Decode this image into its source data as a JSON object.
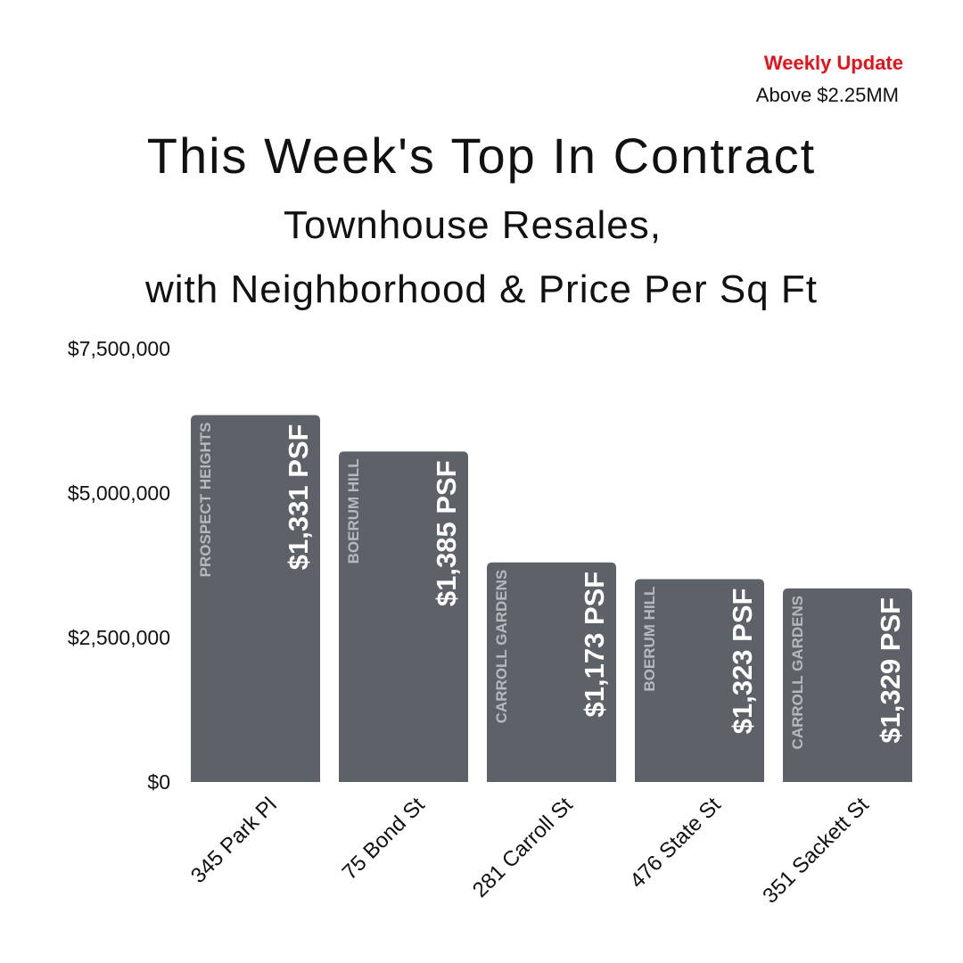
{
  "header": {
    "badge": "Weekly Update",
    "threshold": "Above $2.25MM",
    "title": "This Week's Top In Contract",
    "subtitle_line1": "Townhouse Resales,",
    "subtitle_line2": "with Neighborhood & Price Per Sq Ft"
  },
  "colors": {
    "bar": "#5d6268",
    "badge": "#e3121b",
    "psf_text": "#ffffff",
    "neighborhood_text": "#b6b9bc"
  },
  "chart_data": {
    "type": "bar",
    "categories": [
      "345 Park Pl",
      "75 Bond St",
      "281 Carroll St",
      "476 State St",
      "351 Sackett St"
    ],
    "values": [
      6350000,
      5720000,
      3800000,
      3510000,
      3350000
    ],
    "psf_labels": [
      "$1,331 PSF",
      "$1,385 PSF",
      "$1,173 PSF",
      "$1,323 PSF",
      "$1,329 PSF"
    ],
    "neighborhoods": [
      "PROSPECT HEIGHTS",
      "BOERUM HILL",
      "CARROLL GARDENS",
      "BOERUM HILL",
      "CARROLL GARDENS"
    ],
    "yticks": [
      0,
      2500000,
      5000000,
      7500000
    ],
    "ytick_labels": [
      "$0",
      "$2,500,000",
      "$5,000,000",
      "$7,500,000"
    ],
    "ylim": [
      0,
      7500000
    ],
    "grid": false,
    "legend": "none"
  }
}
